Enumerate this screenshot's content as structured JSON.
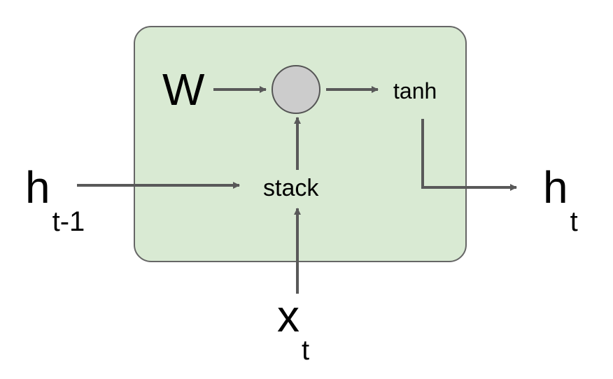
{
  "diagram": {
    "colors": {
      "cell_fill": "#d9ead3",
      "cell_stroke": "#666666",
      "arrow": "#595959",
      "node_fill": "#cccccc",
      "node_stroke": "#555555"
    },
    "labels": {
      "weight": "W",
      "op": "tanh",
      "combine": "stack",
      "h_prev": {
        "base": "h",
        "sub": "t-1"
      },
      "x_in": {
        "base": "x",
        "sub": "t"
      },
      "h_out": {
        "base": "h",
        "sub": "t"
      }
    }
  }
}
